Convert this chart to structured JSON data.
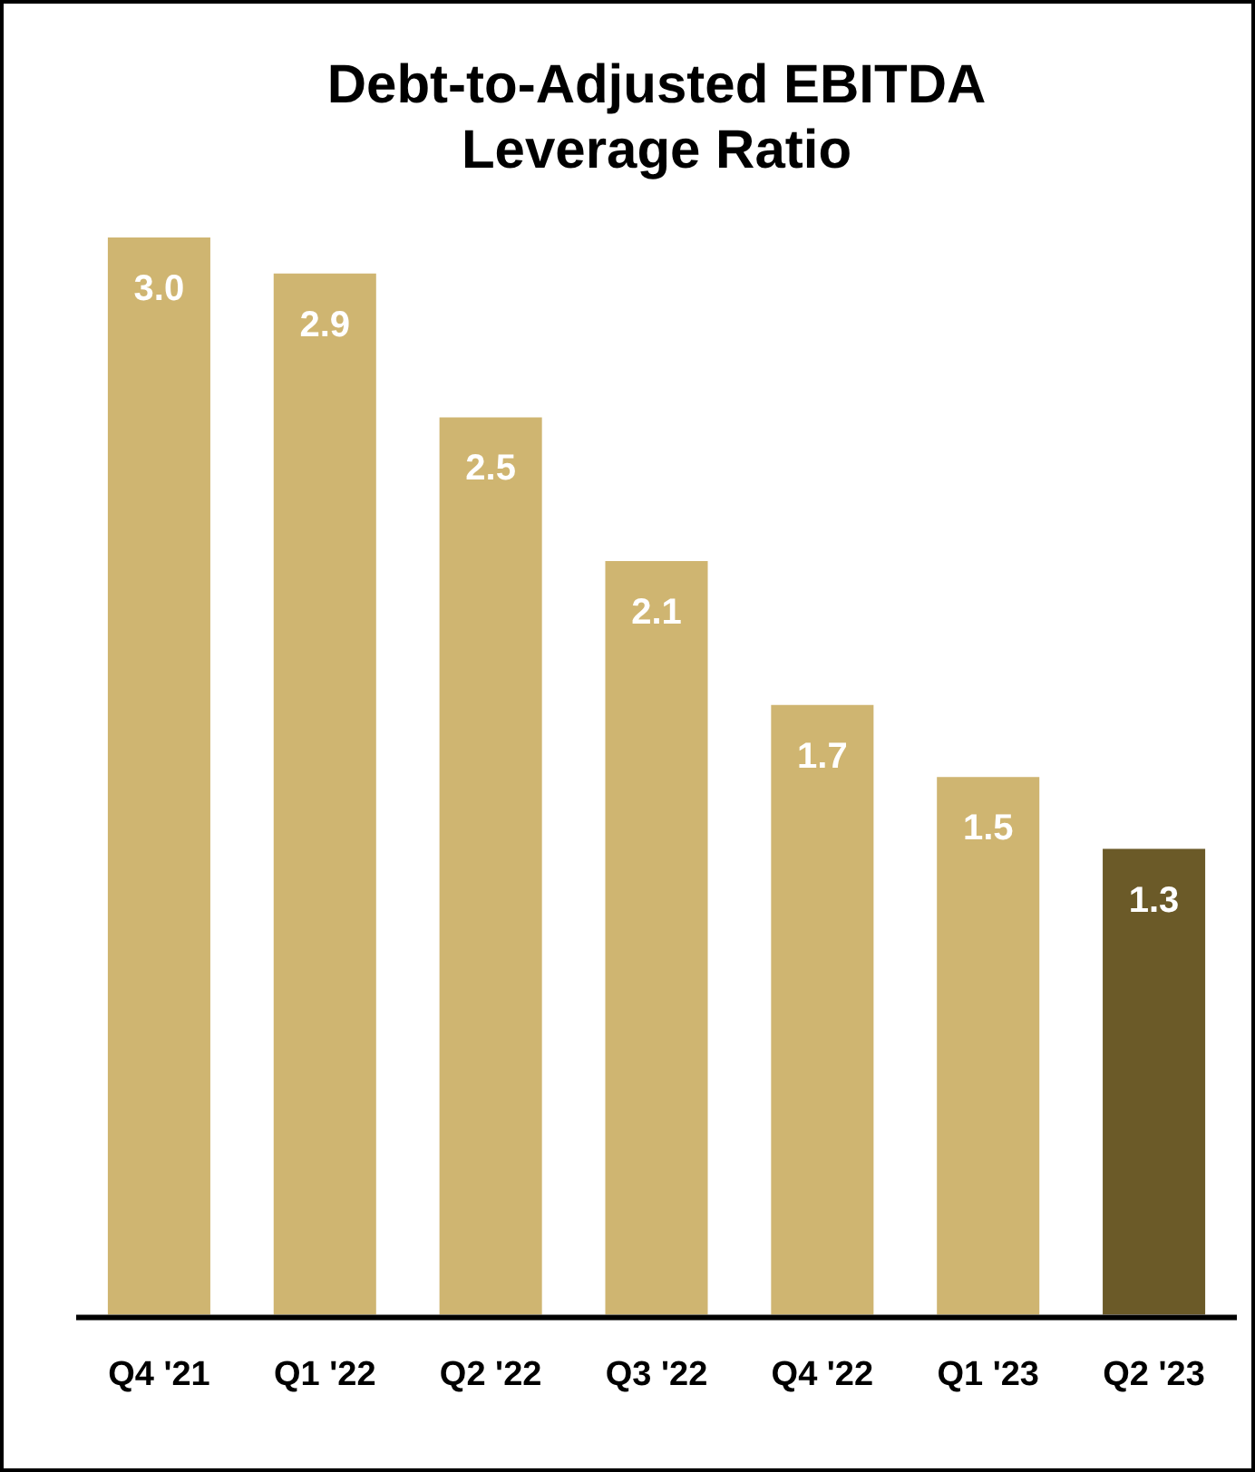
{
  "chart_data": {
    "type": "bar",
    "title": "Debt-to-Adjusted EBITDA\nLeverage Ratio",
    "categories": [
      "Q4 '21",
      "Q1 '22",
      "Q2 '22",
      "Q3 '22",
      "Q4 '22",
      "Q1 '23",
      "Q2 '23"
    ],
    "values": [
      3.0,
      2.9,
      2.5,
      2.1,
      1.7,
      1.5,
      1.3
    ],
    "colors": [
      "#cfb571",
      "#cfb571",
      "#cfb571",
      "#cfb571",
      "#cfb571",
      "#cfb571",
      "#6b5a28"
    ],
    "value_labels": [
      "3.0",
      "2.9",
      "2.5",
      "2.1",
      "1.7",
      "1.5",
      "1.3"
    ],
    "grid": false,
    "legend": false
  }
}
